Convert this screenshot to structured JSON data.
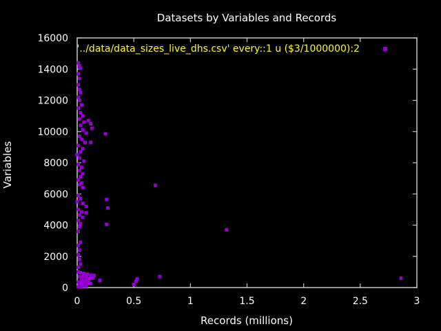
{
  "chart_data": {
    "type": "scatter",
    "title": "Datasets by Variables and Records",
    "xlabel": "Records (millions)",
    "ylabel": "Variables",
    "xlim": [
      0,
      3
    ],
    "ylim": [
      0,
      16000
    ],
    "xticks": [
      "0",
      "0.5",
      "1",
      "1.5",
      "2",
      "2.5",
      "3"
    ],
    "yticks": [
      "0",
      "2000",
      "4000",
      "6000",
      "8000",
      "10000",
      "12000",
      "14000",
      "16000"
    ],
    "grid": false,
    "legend_position": "top-right",
    "colors": {
      "background": "#000000",
      "axes": "#c8c8c8",
      "text": "#ffffff",
      "series": "#9400d3",
      "legend_text": "#ffff00"
    },
    "series": [
      {
        "name": "'../data/data_sizes_live_dhs.csv' every::1 u ($3/1000000):2",
        "points": [
          [
            2.72,
            15250
          ],
          [
            2.86,
            600
          ],
          [
            0.01,
            14400
          ],
          [
            0.02,
            14200
          ],
          [
            0.03,
            14050
          ],
          [
            0.01,
            13700
          ],
          [
            0.02,
            13400
          ],
          [
            0.01,
            13000
          ],
          [
            0.02,
            12700
          ],
          [
            0.03,
            12500
          ],
          [
            0.01,
            12200
          ],
          [
            0.02,
            12000
          ],
          [
            0.04,
            11700
          ],
          [
            0.01,
            11500
          ],
          [
            0.03,
            11200
          ],
          [
            0.05,
            11000
          ],
          [
            0.02,
            10800
          ],
          [
            0.06,
            10600
          ],
          [
            0.1,
            10700
          ],
          [
            0.12,
            10500
          ],
          [
            0.13,
            10200
          ],
          [
            0.03,
            10400
          ],
          [
            0.05,
            10100
          ],
          [
            0.08,
            9900
          ],
          [
            0.02,
            9700
          ],
          [
            0.25,
            9850
          ],
          [
            0.04,
            9500
          ],
          [
            0.07,
            9300
          ],
          [
            0.12,
            9300
          ],
          [
            0.01,
            9100
          ],
          [
            0.05,
            8900
          ],
          [
            0.03,
            8700
          ],
          [
            0.0,
            8500
          ],
          [
            0.02,
            8300
          ],
          [
            0.06,
            8100
          ],
          [
            0.01,
            7900
          ],
          [
            0.04,
            7700
          ],
          [
            0.02,
            7500
          ],
          [
            0.05,
            7300
          ],
          [
            0.03,
            7100
          ],
          [
            0.01,
            6900
          ],
          [
            0.04,
            6700
          ],
          [
            0.02,
            6600
          ],
          [
            0.05,
            6400
          ],
          [
            0.69,
            6550
          ],
          [
            0.01,
            5900
          ],
          [
            0.03,
            5700
          ],
          [
            0.26,
            5650
          ],
          [
            0.0,
            5500
          ],
          [
            0.05,
            5400
          ],
          [
            0.08,
            5200
          ],
          [
            0.27,
            5100
          ],
          [
            0.01,
            5000
          ],
          [
            0.04,
            4850
          ],
          [
            0.08,
            4800
          ],
          [
            0.02,
            4650
          ],
          [
            0.05,
            4500
          ],
          [
            0.01,
            4300
          ],
          [
            0.26,
            4050
          ],
          [
            0.03,
            4100
          ],
          [
            0.02,
            3900
          ],
          [
            1.32,
            3700
          ],
          [
            0.01,
            3600
          ],
          [
            0.03,
            2900
          ],
          [
            0.01,
            2700
          ],
          [
            0.02,
            2400
          ],
          [
            0.01,
            2100
          ],
          [
            0.02,
            1800
          ],
          [
            0.03,
            1500
          ],
          [
            0.01,
            1300
          ],
          [
            0.01,
            1000
          ],
          [
            0.03,
            950
          ],
          [
            0.06,
            900
          ],
          [
            0.09,
            850
          ],
          [
            0.12,
            800
          ],
          [
            0.15,
            780
          ],
          [
            0.02,
            700
          ],
          [
            0.05,
            700
          ],
          [
            0.08,
            650
          ],
          [
            0.11,
            600
          ],
          [
            0.14,
            600
          ],
          [
            0.04,
            500
          ],
          [
            0.07,
            450
          ],
          [
            0.1,
            450
          ],
          [
            0.2,
            460
          ],
          [
            0.01,
            350
          ],
          [
            0.03,
            300
          ],
          [
            0.06,
            300
          ],
          [
            0.09,
            250
          ],
          [
            0.12,
            250
          ],
          [
            0.02,
            150
          ],
          [
            0.05,
            100
          ],
          [
            0.08,
            100
          ],
          [
            0.01,
            50
          ],
          [
            0.03,
            30
          ],
          [
            0.5,
            200
          ],
          [
            0.52,
            400
          ],
          [
            0.53,
            550
          ],
          [
            0.73,
            700
          ]
        ]
      }
    ]
  }
}
